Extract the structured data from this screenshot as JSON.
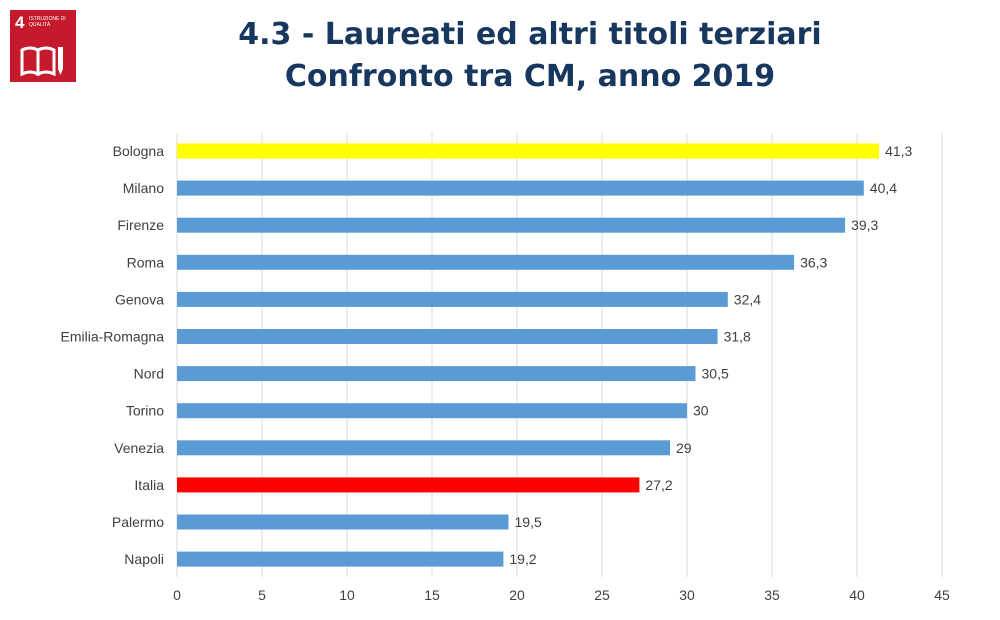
{
  "badge": {
    "number": "4",
    "text": "Istruzione di qualità",
    "icon": "book-pencil-icon",
    "color": "#c5192d"
  },
  "header": {
    "title_line1": "4.3 - Laureati ed altri titoli terziari",
    "title_line2": "Confronto tra CM, anno 2019"
  },
  "chart_data": {
    "type": "bar",
    "orientation": "horizontal",
    "categories": [
      "Bologna",
      "Milano",
      "Firenze",
      "Roma",
      "Genova",
      "Emilia-Romagna",
      "Nord",
      "Torino",
      "Venezia",
      "Italia",
      "Palermo",
      "Napoli"
    ],
    "values": [
      41.3,
      40.4,
      39.3,
      36.3,
      32.4,
      31.8,
      30.5,
      30,
      29,
      27.2,
      19.5,
      19.2
    ],
    "data_labels": [
      "41,3",
      "40,4",
      "39,3",
      "36,3",
      "32,4",
      "31,8",
      "30,5",
      "30",
      "29",
      "27,2",
      "19,5",
      "19,2"
    ],
    "bar_colors": [
      "#ffff00",
      "#5b9bd5",
      "#5b9bd5",
      "#5b9bd5",
      "#5b9bd5",
      "#5b9bd5",
      "#5b9bd5",
      "#5b9bd5",
      "#5b9bd5",
      "#ff0000",
      "#5b9bd5",
      "#5b9bd5"
    ],
    "xlim": [
      0,
      45
    ],
    "xticks": [
      0,
      5,
      10,
      15,
      20,
      25,
      30,
      35,
      40,
      45
    ],
    "grid": "vertical",
    "legend": "none",
    "xlabel": "",
    "ylabel": ""
  }
}
